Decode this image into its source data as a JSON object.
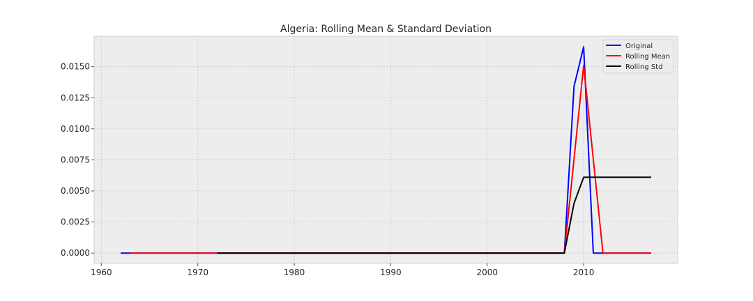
{
  "chart_data": {
    "type": "line",
    "title": "Algeria: Rolling Mean & Standard Deviation",
    "xlabel": "",
    "ylabel": "",
    "xlim": [
      1959.25,
      2019.75
    ],
    "ylim": [
      -0.00083,
      0.01745
    ],
    "x_ticks": [
      1960,
      1970,
      1980,
      1990,
      2000,
      2010
    ],
    "y_ticks": [
      0.0,
      0.0025,
      0.005,
      0.0075,
      0.01,
      0.0125,
      0.015
    ],
    "y_tick_labels": [
      "0.0000",
      "0.0025",
      "0.0050",
      "0.0075",
      "0.0100",
      "0.0125",
      "0.0150"
    ],
    "grid": true,
    "legend_position": "top-right",
    "series": [
      {
        "name": "Original",
        "color": "#0000ff",
        "x": [
          1962,
          2008,
          2009,
          2010,
          2011,
          2017
        ],
        "y": [
          0.0,
          0.0,
          0.0134,
          0.0166,
          0.0,
          0.0
        ]
      },
      {
        "name": "Rolling Mean",
        "color": "#ff0000",
        "x": [
          1963,
          2008,
          2010,
          2012,
          2017
        ],
        "y": [
          0.0,
          0.0,
          0.0151,
          0.0,
          0.0
        ]
      },
      {
        "name": "Rolling Std",
        "color": "#000000",
        "x": [
          1972,
          2008,
          2009,
          2010,
          2017
        ],
        "y": [
          0.0,
          0.0,
          0.004,
          0.0061,
          0.0061
        ]
      }
    ]
  }
}
